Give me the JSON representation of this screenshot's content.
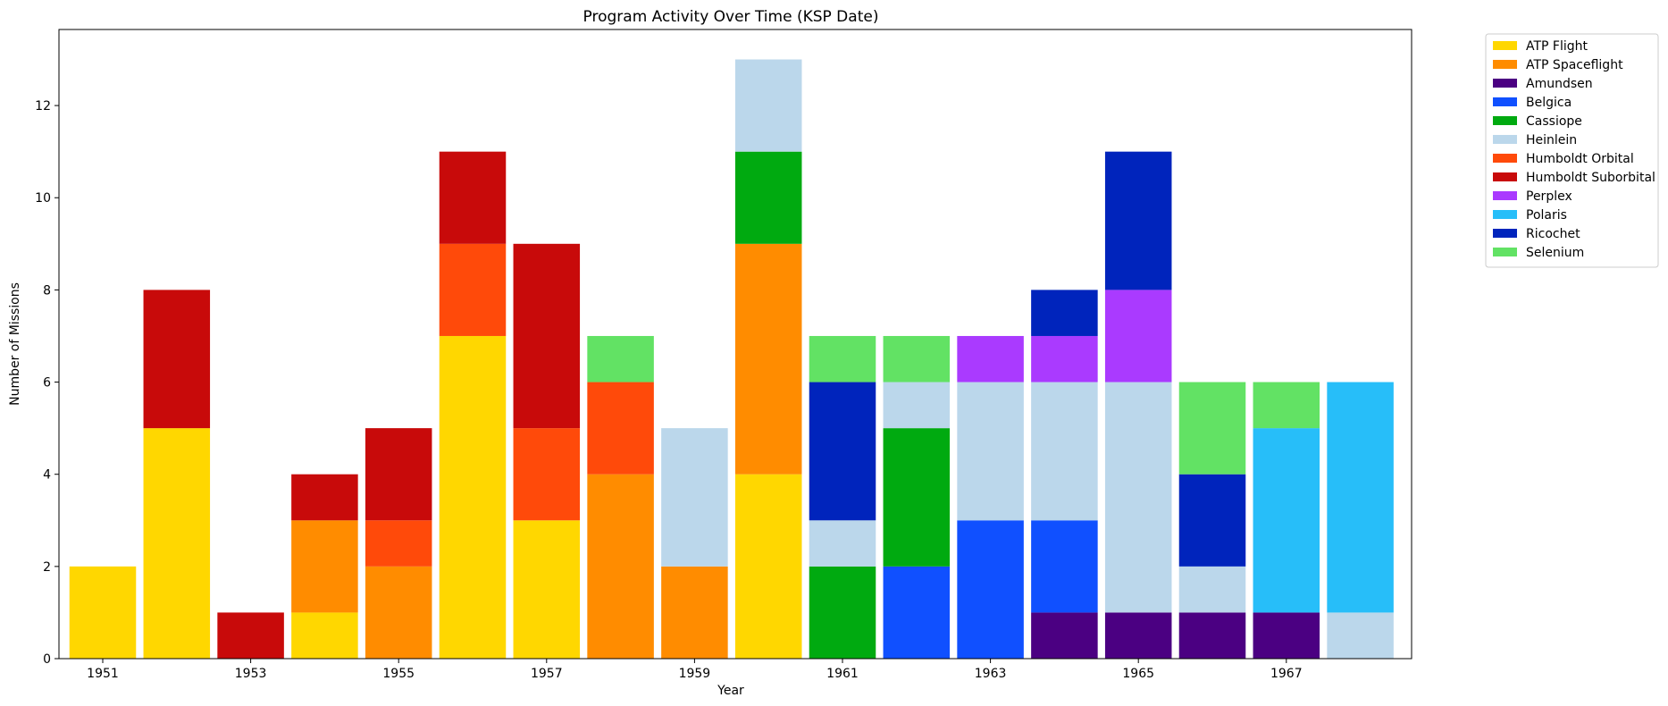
{
  "chart_data": {
    "type": "bar",
    "stacked": true,
    "title": "Program Activity Over Time (KSP Date)",
    "xlabel": "Year",
    "ylabel": "Number of Missions",
    "categories": [
      1951,
      1952,
      1953,
      1954,
      1955,
      1956,
      1957,
      1958,
      1959,
      1960,
      1961,
      1962,
      1963,
      1964,
      1965,
      1966,
      1967,
      1968
    ],
    "x_tick_labels": [
      "1951",
      "1953",
      "1955",
      "1957",
      "1959",
      "1961",
      "1963",
      "1965",
      "1967"
    ],
    "y_ticks": [
      0,
      2,
      4,
      6,
      8,
      10,
      12
    ],
    "ylim": [
      0,
      13.65
    ],
    "grid": false,
    "legend_position": "outside-top-right",
    "series": [
      {
        "name": "ATP Flight",
        "color": "#FFD700",
        "values": [
          2,
          5,
          0,
          1,
          0,
          7,
          3,
          0,
          0,
          4,
          0,
          0,
          0,
          0,
          0,
          0,
          0,
          0
        ]
      },
      {
        "name": "ATP Spaceflight",
        "color": "#FF8C00",
        "values": [
          0,
          0,
          0,
          2,
          2,
          0,
          0,
          4,
          2,
          5,
          0,
          0,
          0,
          0,
          0,
          0,
          0,
          0
        ]
      },
      {
        "name": "Amundsen",
        "color": "#4B0082",
        "values": [
          0,
          0,
          0,
          0,
          0,
          0,
          0,
          0,
          0,
          0,
          0,
          0,
          0,
          1,
          1,
          1,
          1,
          0
        ]
      },
      {
        "name": "Belgica",
        "color": "#1050FF",
        "values": [
          0,
          0,
          0,
          0,
          0,
          0,
          0,
          0,
          0,
          0,
          0,
          2,
          3,
          2,
          0,
          0,
          0,
          0
        ]
      },
      {
        "name": "Cassiope",
        "color": "#00AA10",
        "values": [
          0,
          0,
          0,
          0,
          0,
          0,
          0,
          0,
          0,
          2,
          2,
          3,
          0,
          0,
          0,
          0,
          0,
          0
        ]
      },
      {
        "name": "Heinlein",
        "color": "#BBD7EB",
        "values": [
          0,
          0,
          0,
          0,
          0,
          0,
          0,
          0,
          3,
          2,
          1,
          1,
          3,
          3,
          5,
          1,
          0,
          1
        ]
      },
      {
        "name": "Humboldt Orbital",
        "color": "#FF4A0A",
        "values": [
          0,
          0,
          0,
          0,
          1,
          2,
          2,
          2,
          0,
          0,
          0,
          0,
          0,
          0,
          0,
          0,
          0,
          0
        ]
      },
      {
        "name": "Humboldt Suborbital",
        "color": "#C80A0A",
        "values": [
          0,
          3,
          1,
          1,
          2,
          2,
          4,
          0,
          0,
          0,
          0,
          0,
          0,
          0,
          0,
          0,
          0,
          0
        ]
      },
      {
        "name": "Perplex",
        "color": "#AA3AFF",
        "values": [
          0,
          0,
          0,
          0,
          0,
          0,
          0,
          0,
          0,
          0,
          0,
          0,
          1,
          1,
          2,
          0,
          0,
          0
        ]
      },
      {
        "name": "Polaris",
        "color": "#27BEF9",
        "values": [
          0,
          0,
          0,
          0,
          0,
          0,
          0,
          0,
          0,
          0,
          0,
          0,
          0,
          0,
          0,
          0,
          4,
          5
        ]
      },
      {
        "name": "Ricochet",
        "color": "#0024BC",
        "values": [
          0,
          0,
          0,
          0,
          0,
          0,
          0,
          0,
          0,
          0,
          3,
          0,
          0,
          1,
          3,
          2,
          0,
          0
        ]
      },
      {
        "name": "Selenium",
        "color": "#62E264",
        "values": [
          0,
          0,
          0,
          0,
          0,
          0,
          0,
          1,
          0,
          0,
          1,
          1,
          0,
          0,
          0,
          2,
          1,
          0
        ]
      }
    ]
  }
}
